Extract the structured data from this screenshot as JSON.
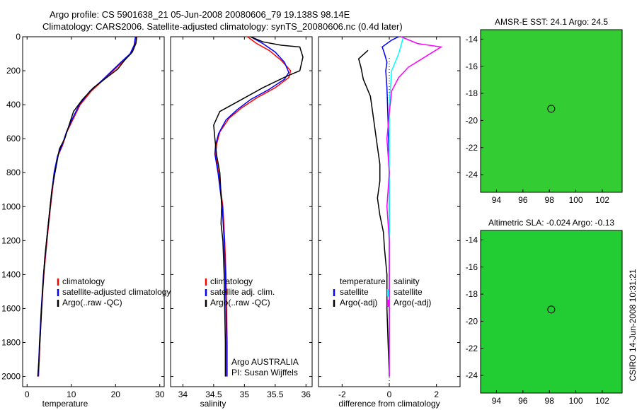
{
  "header": {
    "line1": "Argo profile: CS 5901638_21 05-Jun-2008 20080606_79 19.138S 98.14E",
    "line2": "Climatology: CARS2006. Satellite-adjusted climatology: synTS_20080606.nc (0.4d later)"
  },
  "side_label": "CSIRO 14-Jun-2008 10:31:21",
  "chart_data": [
    {
      "id": "temperature",
      "type": "line",
      "xlabel": "temperature",
      "ylabel": "",
      "xlim": [
        -1,
        31
      ],
      "ylim": [
        0,
        2060
      ],
      "y_reversed": true,
      "xticks": [
        0,
        10,
        20,
        30
      ],
      "yticks": [
        0,
        200,
        400,
        600,
        800,
        1000,
        1200,
        1400,
        1600,
        1800,
        2000
      ],
      "legend": {
        "position": "lower-right",
        "entries": [
          "climatology",
          "satellite-adjusted climatology",
          "Argo(..raw -QC)"
        ]
      },
      "series": [
        {
          "name": "climatology",
          "color": "#ff0000",
          "points": [
            [
              24.6,
              0
            ],
            [
              24.3,
              50
            ],
            [
              23.5,
              100
            ],
            [
              21.5,
              150
            ],
            [
              19.5,
              200
            ],
            [
              17,
              260
            ],
            [
              14.5,
              320
            ],
            [
              12,
              400
            ],
            [
              10.5,
              480
            ],
            [
              9,
              560
            ],
            [
              8,
              640
            ],
            [
              7,
              700
            ],
            [
              6.2,
              800
            ],
            [
              5.3,
              1000
            ],
            [
              4.5,
              1200
            ],
            [
              3.8,
              1400
            ],
            [
              3.3,
              1600
            ],
            [
              2.9,
              1800
            ],
            [
              2.6,
              2000
            ]
          ]
        },
        {
          "name": "satellite-adjusted climatology",
          "color": "#0000ff",
          "points": [
            [
              24.5,
              0
            ],
            [
              24.2,
              50
            ],
            [
              23.3,
              100
            ],
            [
              21.2,
              150
            ],
            [
              19.2,
              200
            ],
            [
              16.8,
              260
            ],
            [
              14.2,
              320
            ],
            [
              11.8,
              400
            ],
            [
              10.3,
              480
            ],
            [
              8.9,
              560
            ],
            [
              7.9,
              640
            ],
            [
              6.9,
              700
            ],
            [
              6.1,
              800
            ],
            [
              5.2,
              1000
            ],
            [
              4.4,
              1200
            ],
            [
              3.7,
              1400
            ],
            [
              3.2,
              1600
            ],
            [
              2.8,
              1800
            ],
            [
              2.5,
              2000
            ]
          ]
        },
        {
          "name": "Argo(..raw -QC)",
          "color": "#000000",
          "points": [
            [
              24.8,
              0
            ],
            [
              24.6,
              40
            ],
            [
              23.8,
              90
            ],
            [
              22,
              140
            ],
            [
              20.5,
              190
            ],
            [
              18,
              240
            ],
            [
              15,
              300
            ],
            [
              12.5,
              370
            ],
            [
              10.5,
              440
            ],
            [
              9.5,
              520
            ],
            [
              8.5,
              600
            ],
            [
              7.3,
              660
            ],
            [
              6.6,
              760
            ],
            [
              5.6,
              900
            ],
            [
              4.8,
              1100
            ],
            [
              4,
              1300
            ],
            [
              3.5,
              1500
            ],
            [
              3.1,
              1700
            ],
            [
              2.7,
              1900
            ],
            [
              2.4,
              2000
            ]
          ]
        }
      ]
    },
    {
      "id": "salinity",
      "type": "line",
      "xlabel": "salinity",
      "ylabel": "",
      "xlim": [
        33.8,
        36.1
      ],
      "ylim": [
        0,
        2060
      ],
      "y_reversed": true,
      "xticks": [
        34,
        34.5,
        35,
        35.5,
        36
      ],
      "xticklabels": [
        "34",
        "34.5",
        "35",
        "35.5",
        "36"
      ],
      "yticks": [
        0,
        200,
        400,
        600,
        800,
        1000,
        1200,
        1400,
        1600,
        1800,
        2000
      ],
      "legend": {
        "position": "lower-right",
        "entries": [
          "climatology",
          "satellite adj. clim.",
          "Argo(..raw -QC)"
        ]
      },
      "annotations": [
        "Argo AUSTRALIA",
        "PI: Susan Wijffels"
      ],
      "series": [
        {
          "name": "climatology",
          "color": "#ff0000",
          "points": [
            [
              35.05,
              0
            ],
            [
              35.2,
              40
            ],
            [
              35.4,
              80
            ],
            [
              35.6,
              140
            ],
            [
              35.75,
              200
            ],
            [
              35.72,
              240
            ],
            [
              35.5,
              300
            ],
            [
              35.2,
              360
            ],
            [
              34.95,
              420
            ],
            [
              34.75,
              480
            ],
            [
              34.6,
              560
            ],
            [
              34.55,
              630
            ],
            [
              34.53,
              690
            ],
            [
              34.58,
              800
            ],
            [
              34.65,
              1000
            ],
            [
              34.68,
              1200
            ],
            [
              34.7,
              1400
            ],
            [
              34.71,
              1600
            ],
            [
              34.72,
              1800
            ],
            [
              34.72,
              2000
            ]
          ]
        },
        {
          "name": "satellite adj. clim.",
          "color": "#0000ff",
          "points": [
            [
              35.1,
              0
            ],
            [
              35.3,
              40
            ],
            [
              35.5,
              90
            ],
            [
              35.65,
              150
            ],
            [
              35.72,
              210
            ],
            [
              35.65,
              250
            ],
            [
              35.4,
              310
            ],
            [
              35.1,
              370
            ],
            [
              34.88,
              430
            ],
            [
              34.7,
              490
            ],
            [
              34.58,
              570
            ],
            [
              34.53,
              640
            ],
            [
              34.52,
              690
            ],
            [
              34.57,
              800
            ],
            [
              34.64,
              1000
            ],
            [
              34.67,
              1200
            ],
            [
              34.69,
              1400
            ],
            [
              34.7,
              1600
            ],
            [
              34.71,
              1800
            ],
            [
              34.71,
              2000
            ]
          ]
        },
        {
          "name": "Argo(..raw -QC)",
          "color": "#000000",
          "points": [
            [
              35.1,
              0
            ],
            [
              35.3,
              30
            ],
            [
              35.6,
              50
            ],
            [
              35.9,
              60
            ],
            [
              35.95,
              120
            ],
            [
              35.9,
              200
            ],
            [
              35.7,
              230
            ],
            [
              35.3,
              300
            ],
            [
              34.9,
              380
            ],
            [
              34.6,
              440
            ],
            [
              34.5,
              520
            ],
            [
              34.52,
              600
            ],
            [
              34.55,
              700
            ],
            [
              34.6,
              800
            ],
            [
              34.63,
              1000
            ],
            [
              34.62,
              1100
            ],
            [
              34.65,
              1200
            ],
            [
              34.67,
              1400
            ],
            [
              34.68,
              1600
            ],
            [
              34.69,
              1800
            ],
            [
              34.69,
              2000
            ]
          ]
        }
      ]
    },
    {
      "id": "difference",
      "type": "line",
      "xlabel": "difference from climatology",
      "ylabel": "",
      "xlim": [
        -3,
        3
      ],
      "ylim": [
        0,
        2060
      ],
      "y_reversed": true,
      "xticks": [
        -2,
        0,
        2
      ],
      "yticks": [
        0,
        200,
        400,
        600,
        800,
        1000,
        1200,
        1400,
        1600,
        1800,
        2000
      ],
      "legend": {
        "position": "lower-center",
        "groups": [
          {
            "title": "temperature",
            "entries": [
              "satellite",
              "Argo(-adj)"
            ]
          },
          {
            "title": "salinity",
            "entries": [
              "satellite",
              "Argo(-adj)"
            ]
          }
        ]
      },
      "series": [
        {
          "name": "temperature satellite",
          "color": "#0000ff",
          "points": [
            [
              0.4,
              0
            ],
            [
              0.1,
              20
            ],
            [
              -0.3,
              60
            ],
            [
              -0.2,
              100
            ],
            [
              -0.1,
              150
            ],
            [
              -0.15,
              200
            ],
            [
              -0.1,
              300
            ],
            [
              -0.05,
              500
            ],
            [
              0,
              800
            ],
            [
              0,
              1200
            ],
            [
              0,
              1600
            ],
            [
              0,
              2000
            ]
          ]
        },
        {
          "name": "temperature Argo(-adj)",
          "color": "#000000",
          "points": [
            [
              -0.9,
              80
            ],
            [
              -1.3,
              130
            ],
            [
              -1.2,
              180
            ],
            [
              -1.1,
              250
            ],
            [
              -0.8,
              350
            ],
            [
              -0.7,
              450
            ],
            [
              -0.6,
              550
            ],
            [
              -0.5,
              650
            ],
            [
              -0.4,
              750
            ],
            [
              -0.4,
              850
            ],
            [
              -0.5,
              950
            ],
            [
              -0.4,
              1050
            ],
            [
              -0.25,
              1150
            ],
            [
              -0.2,
              1250
            ],
            [
              -0.1,
              1400
            ],
            [
              -0.1,
              1600
            ],
            [
              -0.05,
              1800
            ],
            [
              0,
              2000
            ]
          ]
        },
        {
          "name": "salinity satellite",
          "color": "#00ffff",
          "points": [
            [
              0.6,
              0
            ],
            [
              0.5,
              50
            ],
            [
              0.4,
              100
            ],
            [
              0.1,
              200
            ],
            [
              0,
              400
            ],
            [
              0,
              800
            ],
            [
              0,
              1200
            ],
            [
              0,
              1600
            ],
            [
              0,
              2000
            ]
          ]
        },
        {
          "name": "salinity Argo(-adj)",
          "color": "#ff00ff",
          "points": [
            [
              0.5,
              0
            ],
            [
              1.2,
              40
            ],
            [
              2.2,
              60
            ],
            [
              1.5,
              120
            ],
            [
              0.8,
              180
            ],
            [
              0.4,
              240
            ],
            [
              0.1,
              320
            ],
            [
              0,
              450
            ],
            [
              -0.1,
              600
            ],
            [
              0,
              800
            ],
            [
              -0.1,
              1000
            ],
            [
              0,
              1200
            ],
            [
              0,
              1600
            ],
            [
              0,
              2000
            ]
          ]
        }
      ]
    },
    {
      "id": "sst-map",
      "type": "heatmap",
      "title": "AMSR-E SST: 24.1 Argo: 24.5",
      "xlim": [
        92.8,
        103.5
      ],
      "ylim": [
        -25.3,
        -13.3
      ],
      "xticks": [
        94,
        96,
        98,
        100,
        102
      ],
      "yticks": [
        -14,
        -16,
        -18,
        -20,
        -22,
        -24
      ],
      "marker": {
        "lon": 98.14,
        "lat": -19.138
      },
      "colors": {
        "warm": "#ff9900",
        "mid": "#ffdd00",
        "cool": "#33cc33",
        "cold": "#33dddd"
      }
    },
    {
      "id": "sla-map",
      "type": "heatmap",
      "title": "Altimetric SLA: -0.024 Argo: -0.13",
      "xlim": [
        92.8,
        103.5
      ],
      "ylim": [
        -25.3,
        -13.3
      ],
      "xticks": [
        94,
        96,
        98,
        100,
        102
      ],
      "yticks": [
        -14,
        -16,
        -18,
        -20,
        -22,
        -24
      ],
      "marker": {
        "lon": 98.14,
        "lat": -19.138
      },
      "colors": {
        "high": "#ff9933",
        "mid": "#ddee22",
        "low": "#22cc33",
        "lowest": "#33bb88"
      }
    }
  ]
}
